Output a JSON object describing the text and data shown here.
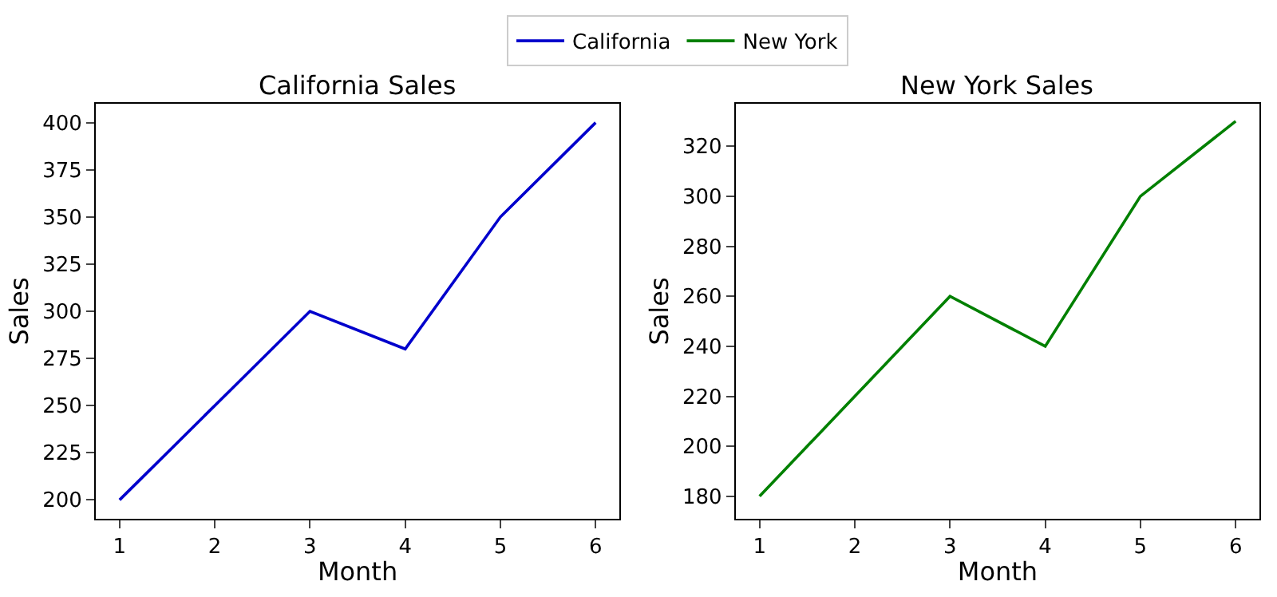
{
  "chart_data": [
    {
      "type": "line",
      "title": "California Sales",
      "xlabel": "Month",
      "ylabel": "Sales",
      "x": [
        1,
        2,
        3,
        4,
        5,
        6
      ],
      "xlim": [
        0.75,
        6.25
      ],
      "xticks": [
        1,
        2,
        3,
        4,
        5,
        6
      ],
      "ylim": [
        190,
        410
      ],
      "yticks": [
        200,
        225,
        250,
        275,
        300,
        325,
        350,
        375,
        400
      ],
      "legend": "top",
      "marker": "none",
      "series": [
        {
          "name": "California",
          "color": "#0000cc",
          "values": [
            200,
            250,
            300,
            280,
            350,
            400
          ]
        }
      ]
    },
    {
      "type": "line",
      "title": "New York Sales",
      "xlabel": "Month",
      "ylabel": "Sales",
      "x": [
        1,
        2,
        3,
        4,
        5,
        6
      ],
      "xlim": [
        0.75,
        6.25
      ],
      "xticks": [
        1,
        2,
        3,
        4,
        5,
        6
      ],
      "ylim": [
        171,
        337
      ],
      "yticks": [
        180,
        200,
        220,
        240,
        260,
        280,
        300,
        320
      ],
      "legend": "top",
      "marker": "none",
      "series": [
        {
          "name": "New York",
          "color": "#008000",
          "values": [
            180,
            220,
            260,
            240,
            300,
            330
          ]
        }
      ]
    }
  ]
}
